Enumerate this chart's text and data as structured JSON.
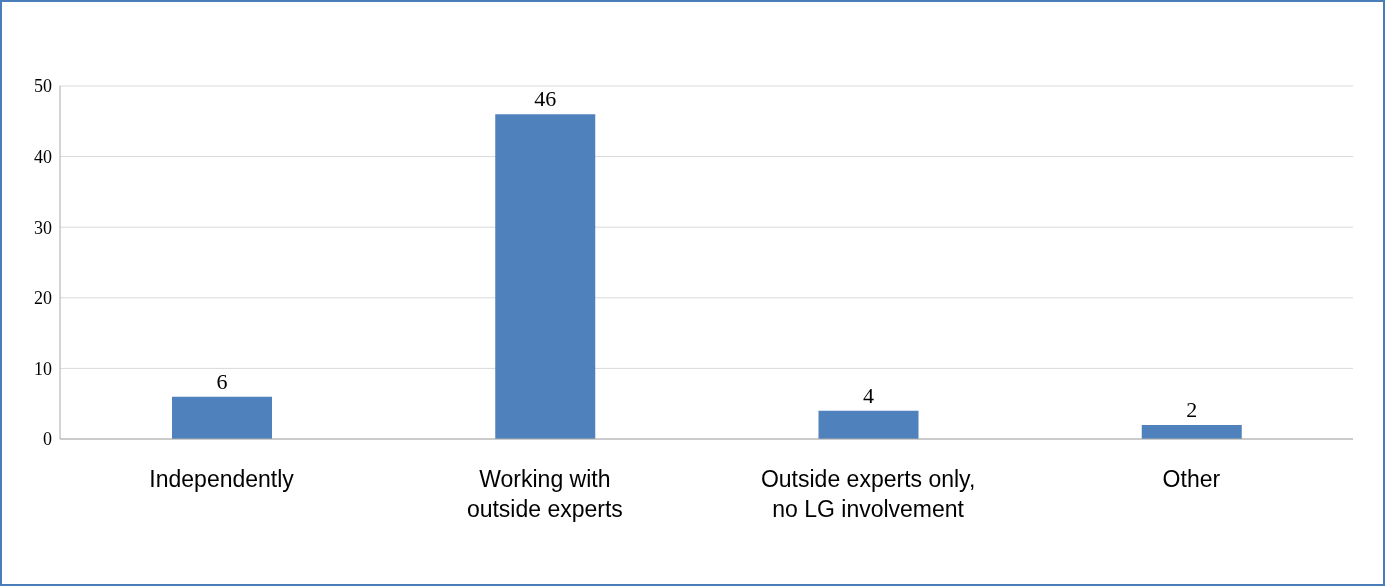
{
  "chart_data": {
    "type": "bar",
    "categories": [
      "Independently",
      "Working with outside experts",
      "Outside experts only, no LG involvement",
      "Other"
    ],
    "values": [
      6,
      46,
      4,
      2
    ],
    "color": "#4f81bd",
    "ylim": [
      0,
      50
    ],
    "yticks": [
      0,
      10,
      20,
      30,
      40,
      50
    ],
    "grid": "y",
    "data_labels": true,
    "legend": false
  }
}
